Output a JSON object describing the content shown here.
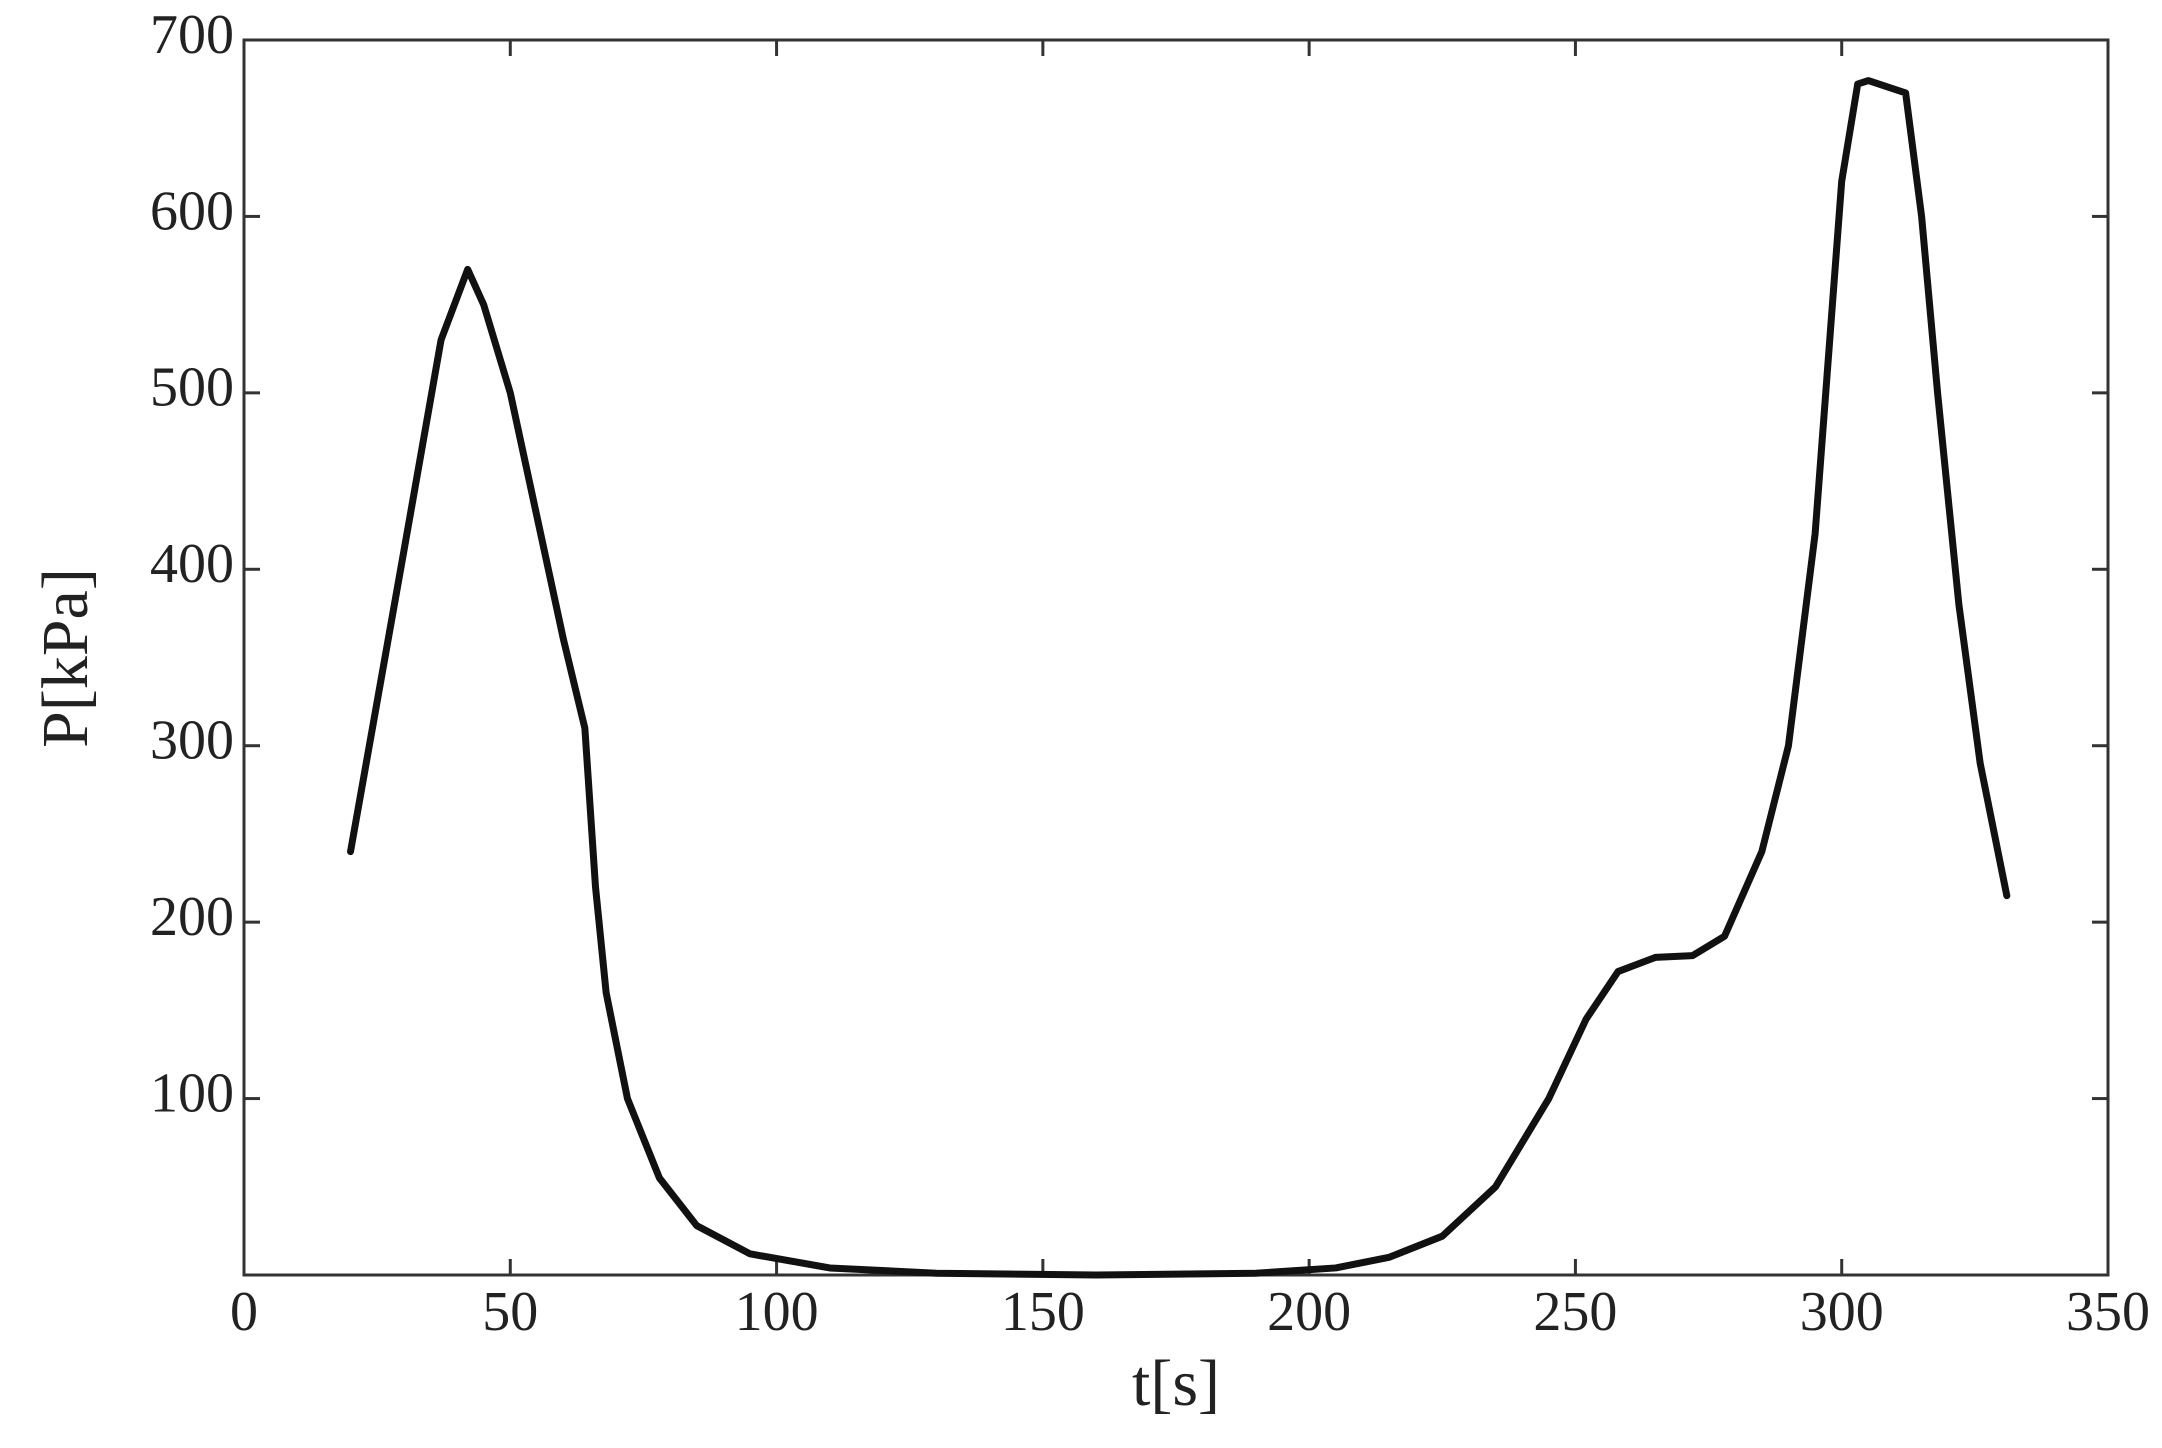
{
  "chart_data": {
    "type": "line",
    "x_label": "t[s]",
    "y_label": "P[kPa]",
    "x": [
      20,
      30,
      37,
      42,
      45,
      50,
      55,
      60,
      64,
      66,
      68,
      72,
      78,
      85,
      95,
      110,
      130,
      160,
      190,
      205,
      215,
      225,
      235,
      245,
      252,
      258,
      265,
      272,
      278,
      285,
      290,
      295,
      300,
      303,
      305,
      312,
      315,
      318,
      322,
      326,
      331
    ],
    "values": [
      240,
      410,
      530,
      570,
      550,
      500,
      430,
      360,
      310,
      220,
      160,
      100,
      55,
      28,
      12,
      4,
      1,
      0,
      1,
      4,
      10,
      22,
      50,
      100,
      145,
      172,
      180,
      181,
      192,
      240,
      300,
      420,
      620,
      675,
      677,
      670,
      600,
      500,
      380,
      290,
      215
    ],
    "color": "#111111",
    "xlim": [
      0,
      350
    ],
    "ylim": [
      0,
      700
    ],
    "xticks": [
      0,
      50,
      100,
      150,
      200,
      250,
      300,
      350
    ],
    "yticks": [
      100,
      200,
      300,
      400,
      500,
      600,
      700
    ]
  }
}
